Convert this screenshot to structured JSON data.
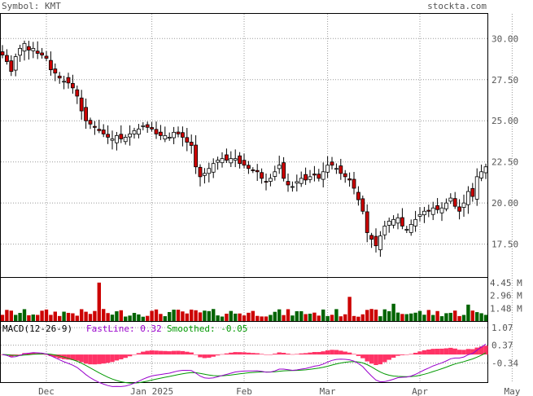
{
  "header": {
    "symbol": "Symbol: KMT",
    "site": "stockta.com"
  },
  "chart_data": {
    "type": "candlestick",
    "symbol": "KMT",
    "price_axis": {
      "ylim": [
        15.5,
        31.5
      ],
      "ticks": [
        30.0,
        27.5,
        25.0,
        22.5,
        20.0,
        17.5
      ],
      "labels": [
        "30.00",
        "27.50",
        "25.00",
        "22.50",
        "20.00",
        "17.50"
      ]
    },
    "volume_axis": {
      "unit": "M",
      "ylim": [
        0,
        5.0
      ],
      "ticks": [
        4.45,
        2.96,
        1.48
      ],
      "labels": [
        "4.45 M",
        "2.96 M",
        "1.48 M"
      ]
    },
    "macd_axis": {
      "ylim": [
        -1.1,
        1.3
      ],
      "ticks": [
        1.07,
        0.37,
        -0.34
      ],
      "labels": [
        "1.07",
        "0.37",
        "-0.34"
      ]
    },
    "x_labels": [
      {
        "label": "Dec",
        "index": 10
      },
      {
        "label": "Jan 2025",
        "index": 34
      },
      {
        "label": "Feb",
        "index": 55
      },
      {
        "label": "Mar",
        "index": 74
      },
      {
        "label": "Apr",
        "index": 95
      },
      {
        "label": "May",
        "index": 116
      }
    ],
    "macd_legend": {
      "title": "MACD(12-26-9)",
      "fastline": "FastLine: 0.32",
      "smoothed": "Smoothed: -0.05"
    },
    "colors": {
      "up": "#ffffff",
      "down": "#cc0000",
      "volume_up": "#006400",
      "volume_down": "#cc0000",
      "fastline": "#9900cc",
      "smoothed": "#009900",
      "histogram": "#ff3366",
      "grid": "#999999"
    },
    "grid": true,
    "closes": [
      29.0,
      28.6,
      28.0,
      28.9,
      29.4,
      29.7,
      29.3,
      29.4,
      29.1,
      29.0,
      28.8,
      28.1,
      27.9,
      27.6,
      27.4,
      27.3,
      27.0,
      26.5,
      25.6,
      25.0,
      24.8,
      24.6,
      24.4,
      24.2,
      24.0,
      23.9,
      24.1,
      23.9,
      24.0,
      24.2,
      24.4,
      24.5,
      24.7,
      24.6,
      24.5,
      24.2,
      24.1,
      24.1,
      24.0,
      24.3,
      24.2,
      24.0,
      23.7,
      23.5,
      22.2,
      21.6,
      21.8,
      22.1,
      22.4,
      22.6,
      22.7,
      22.6,
      22.7,
      22.7,
      22.4,
      22.3,
      22.1,
      22.0,
      21.9,
      21.5,
      21.3,
      21.5,
      21.9,
      22.3,
      21.5,
      21.1,
      21.0,
      21.3,
      21.5,
      21.4,
      21.6,
      21.7,
      21.5,
      21.9,
      22.3,
      22.3,
      22.1,
      21.8,
      21.6,
      21.4,
      20.9,
      20.2,
      19.5,
      18.2,
      17.8,
      17.4,
      18.0,
      18.6,
      18.9,
      19.0,
      19.1,
      18.6,
      18.4,
      18.7,
      19.0,
      19.3,
      19.5,
      19.5,
      19.7,
      19.6,
      19.7,
      20.0,
      20.3,
      19.8,
      19.5,
      20.0,
      20.7,
      20.4,
      21.6,
      21.9,
      22.2
    ]
  }
}
